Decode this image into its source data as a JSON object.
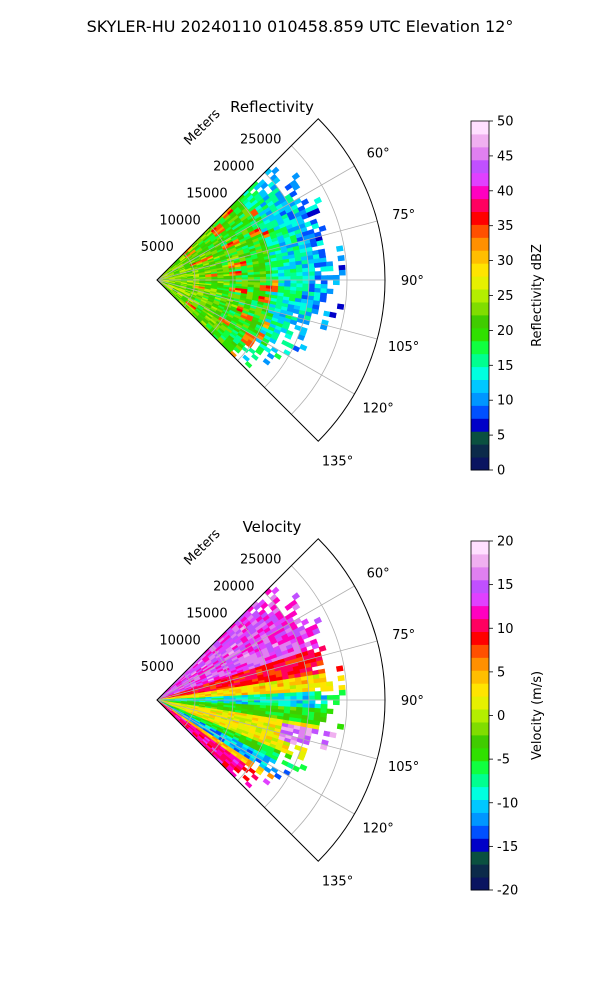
{
  "figure": {
    "title": "SKYLER-HU  20240110  010458.859 UTC Elevation 12°"
  },
  "chart_data": [
    {
      "type": "heatmap",
      "subtype": "polar-sector (PPI)",
      "title": "Reflectivity",
      "range_label": "Meters",
      "range_ticks": [
        "5000",
        "10000",
        "15000",
        "20000",
        "25000"
      ],
      "range_tick_values": [
        5000,
        10000,
        15000,
        20000,
        25000
      ],
      "range_max": 30000,
      "azimuth_ticks": [
        "60°",
        "75°",
        "90°",
        "105°",
        "120°",
        "135°"
      ],
      "azimuth_tick_values": [
        60,
        75,
        90,
        105,
        120,
        135
      ],
      "azimuth_limits": [
        45,
        135
      ],
      "data_range_extent_m": [
        0,
        22000
      ],
      "grid": true,
      "colorbar": {
        "label": "Reflectivity dBZ",
        "ticks": [
          "0",
          "5",
          "10",
          "15",
          "20",
          "25",
          "30",
          "35",
          "40",
          "45",
          "50"
        ],
        "vmin": 0,
        "vmax": 50,
        "colors": [
          "#0a1460",
          "#0b2a4a",
          "#0a5040",
          "#0000c8",
          "#0050ff",
          "#0096ff",
          "#00c8ff",
          "#00ffe0",
          "#00ff90",
          "#10ff40",
          "#30e000",
          "#40cc00",
          "#80dd00",
          "#b4ee00",
          "#e6f000",
          "#ffe400",
          "#ffbe00",
          "#ff9000",
          "#ff5000",
          "#ff0000",
          "#ff0060",
          "#ff00c0",
          "#e040ff",
          "#c050ff",
          "#e080f0",
          "#f0b0f0",
          "#ffe0ff"
        ]
      },
      "field_summary": "Echo fills the sector out to about 20000–22000 m; mostly 18–30 dBZ (green to yellow/orange) with scattered 30–36 dBZ red cells between 5000 and 15000 m and weaker 15–20 dBZ speckle at the outer edge."
    },
    {
      "type": "heatmap",
      "subtype": "polar-sector (PPI)",
      "title": "Velocity",
      "range_label": "Meters",
      "range_ticks": [
        "5000",
        "10000",
        "15000",
        "20000",
        "25000"
      ],
      "range_tick_values": [
        5000,
        10000,
        15000,
        20000,
        25000
      ],
      "range_max": 30000,
      "azimuth_ticks": [
        "60°",
        "75°",
        "90°",
        "105°",
        "120°",
        "135°"
      ],
      "azimuth_tick_values": [
        60,
        75,
        90,
        105,
        120,
        135
      ],
      "azimuth_limits": [
        45,
        135
      ],
      "data_range_extent_m": [
        0,
        22000
      ],
      "grid": true,
      "colorbar": {
        "label": "Velocity (m/s)",
        "ticks": [
          "-20",
          "-15",
          "-10",
          "-5",
          "0",
          "5",
          "10",
          "15",
          "20"
        ],
        "vmin": -20,
        "vmax": 20,
        "colors": [
          "#0a1460",
          "#0b2a4a",
          "#0a5040",
          "#0000c8",
          "#0050ff",
          "#0096ff",
          "#00c8ff",
          "#00ffe0",
          "#00ff90",
          "#10ff40",
          "#30e000",
          "#40cc00",
          "#80dd00",
          "#b4ee00",
          "#e6f000",
          "#ffe400",
          "#ffbe00",
          "#ff9000",
          "#ff5000",
          "#ff0000",
          "#ff0060",
          "#ff00c0",
          "#e040ff",
          "#c050ff",
          "#e080f0",
          "#f0b0f0",
          "#ffe0ff"
        ]
      },
      "field_summary": "Folded velocity pattern: +12 to +18 m/s (red/magenta) near azimuth 60–75°, yellow/orange ~0 to +8 m/s near 80–88°, a -8 to -12 m/s cyan/green band close to 90°, yellow 0 to +5 m/s near 95–110°, a -10 m/s band near 115–120°, and +10 m/s red near 125–130°."
    }
  ]
}
